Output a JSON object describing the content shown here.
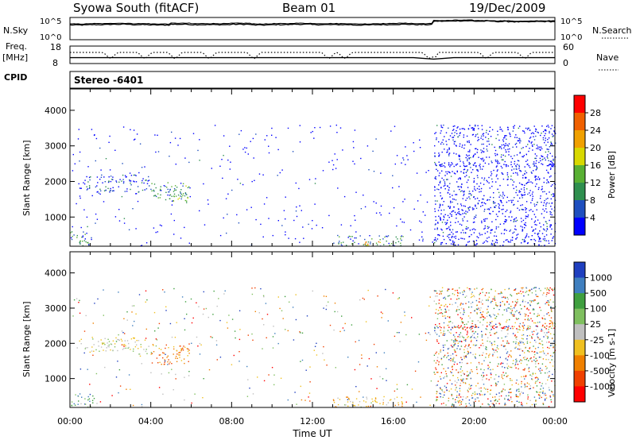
{
  "header": {
    "station": "Syowa South (fitACF)",
    "beam": "Beam 01",
    "date": "19/Dec/2009"
  },
  "labels": {
    "nsky": "N.Sky",
    "nsearch": "N.Search",
    "freq": "Freq.",
    "mhz": "[MHz]",
    "cpid": "CPID",
    "nave": "Nave",
    "stereo": "Stereo -6401",
    "slant_range": "Slant Range [km]",
    "time_ut": "Time UT"
  },
  "chart_data": [
    {
      "type": "line",
      "name": "noise-panel",
      "series": [
        {
          "name": "N.Sky",
          "values": [
            3.8,
            3.9,
            4.0,
            3.9,
            3.8,
            4.0,
            3.9,
            3.9,
            4.0,
            3.8,
            3.9,
            4.0,
            3.9,
            3.9,
            3.8,
            3.9,
            4.0,
            3.9,
            4.9,
            5.0,
            4.9,
            4.8,
            4.7,
            4.8,
            4.8
          ]
        },
        {
          "name": "N.Search",
          "values": [
            4.1,
            4.2,
            4.3,
            4.2,
            4.1,
            4.3,
            4.2,
            4.2,
            4.3,
            4.1,
            4.2,
            4.3,
            4.2,
            4.2,
            4.1,
            4.2,
            4.3,
            4.2,
            5.1,
            5.2,
            5.1,
            5.0,
            4.9,
            5.0,
            5.0
          ]
        }
      ],
      "y_ticks_left": [
        "10^5",
        "10^0"
      ],
      "y_ticks_right": [
        "10^5",
        "10^0"
      ]
    },
    {
      "type": "line",
      "name": "freq-nave-panel",
      "y_ticks_left": [
        "18",
        "8"
      ],
      "y_ticks_right": [
        "60",
        "0"
      ],
      "freq_ylim": [
        8,
        18
      ],
      "nave_ylim": [
        0,
        60
      ],
      "freq_values": [
        11,
        11,
        11,
        11,
        11,
        11,
        11,
        11,
        11,
        11,
        11,
        11,
        11,
        11,
        11,
        11,
        11,
        11,
        10,
        11,
        11,
        11,
        11,
        11,
        11
      ],
      "nave_values": [
        40,
        38,
        40,
        36,
        40,
        35,
        41,
        40,
        37,
        40,
        36,
        40,
        38,
        40,
        40,
        38,
        35,
        38,
        28,
        38,
        37,
        38,
        40,
        33,
        40
      ],
      "dips_hours": [
        2.0,
        3.7,
        5.2,
        6.9,
        9.1,
        12.8,
        13.6,
        17.8,
        20.6,
        22.5
      ]
    },
    {
      "type": "heatmap",
      "name": "power",
      "xlabel": "Time UT",
      "ylabel": "Slant Range [km]",
      "xlim": [
        0,
        24
      ],
      "ylim": [
        180,
        4600
      ],
      "x_ticks": [
        "00:00",
        "04:00",
        "08:00",
        "12:00",
        "16:00",
        "20:00",
        "00:00"
      ],
      "y_ticks": [
        1000,
        2000,
        3000,
        4000
      ],
      "colorbar": {
        "label": "Power [dB]",
        "ticks": [
          4,
          8,
          12,
          16,
          20,
          24,
          28
        ],
        "colors": [
          "#0000ff",
          "#1f4fbf",
          "#2f8f4f",
          "#59b033",
          "#d8d800",
          "#f0a000",
          "#f06000",
          "#ff0000"
        ]
      },
      "regions": [
        {
          "x": [
            0.0,
            18.0
          ],
          "y": [
            200,
            3600
          ],
          "density": 0.05,
          "level": 0
        },
        {
          "x": [
            0.3,
            4.0
          ],
          "y": [
            1700,
            2200
          ],
          "density": 0.45,
          "level": 1
        },
        {
          "x": [
            4.0,
            5.6
          ],
          "y": [
            1500,
            2000
          ],
          "density": 0.55,
          "level": 2
        },
        {
          "x": [
            5.0,
            5.9
          ],
          "y": [
            1400,
            1900
          ],
          "density": 0.6,
          "level": 3
        },
        {
          "x": [
            0.0,
            1.2
          ],
          "y": [
            200,
            600
          ],
          "density": 0.5,
          "level": 2
        },
        {
          "x": [
            13.0,
            16.5
          ],
          "y": [
            200,
            500
          ],
          "density": 0.5,
          "level": 2
        },
        {
          "x": [
            14.5,
            15.5
          ],
          "y": [
            200,
            380
          ],
          "density": 0.5,
          "level": 5
        },
        {
          "x": [
            18.0,
            24.0
          ],
          "y": [
            200,
            3600
          ],
          "density": 0.6,
          "level": 0
        },
        {
          "x": [
            18.0,
            24.0
          ],
          "y": [
            2430,
            2520
          ],
          "density": 0.8,
          "level": 0
        }
      ]
    },
    {
      "type": "heatmap",
      "name": "velocity",
      "xlabel": "Time UT",
      "ylabel": "Slant Range [km]",
      "xlim": [
        0,
        24
      ],
      "ylim": [
        180,
        4600
      ],
      "x_ticks": [
        "00:00",
        "04:00",
        "08:00",
        "12:00",
        "16:00",
        "20:00",
        "00:00"
      ],
      "y_ticks": [
        1000,
        2000,
        3000,
        4000
      ],
      "colorbar": {
        "label": "Velocity [m s-1]",
        "ticks": [
          1000,
          500,
          100,
          25,
          -25,
          -100,
          -500,
          -1000
        ],
        "colors": [
          "#1f3fbf",
          "#3f7fbf",
          "#3f9f3f",
          "#7fbf5f",
          "#bfbfbf",
          "#f0c020",
          "#f08000",
          "#f04000",
          "#ff0000"
        ]
      },
      "regions": [
        {
          "x": [
            0.0,
            18.0
          ],
          "y": [
            200,
            3600
          ],
          "density": 0.05,
          "mix": "all"
        },
        {
          "x": [
            0.3,
            4.0
          ],
          "y": [
            1700,
            2200
          ],
          "density": 0.45,
          "mix": "gray"
        },
        {
          "x": [
            4.0,
            5.9
          ],
          "y": [
            1400,
            2000
          ],
          "density": 0.55,
          "mix": "orange"
        },
        {
          "x": [
            0.0,
            1.2
          ],
          "y": [
            200,
            600
          ],
          "density": 0.5,
          "mix": "green"
        },
        {
          "x": [
            13.0,
            16.5
          ],
          "y": [
            200,
            500
          ],
          "density": 0.5,
          "mix": "yellow"
        },
        {
          "x": [
            13.5,
            14.5
          ],
          "y": [
            200,
            380
          ],
          "density": 0.5,
          "mix": "gray"
        },
        {
          "x": [
            18.0,
            24.0
          ],
          "y": [
            200,
            3600
          ],
          "density": 0.65,
          "mix": "all"
        },
        {
          "x": [
            18.0,
            24.0
          ],
          "y": [
            2430,
            2520
          ],
          "density": 0.8,
          "mix": "red"
        }
      ]
    }
  ]
}
